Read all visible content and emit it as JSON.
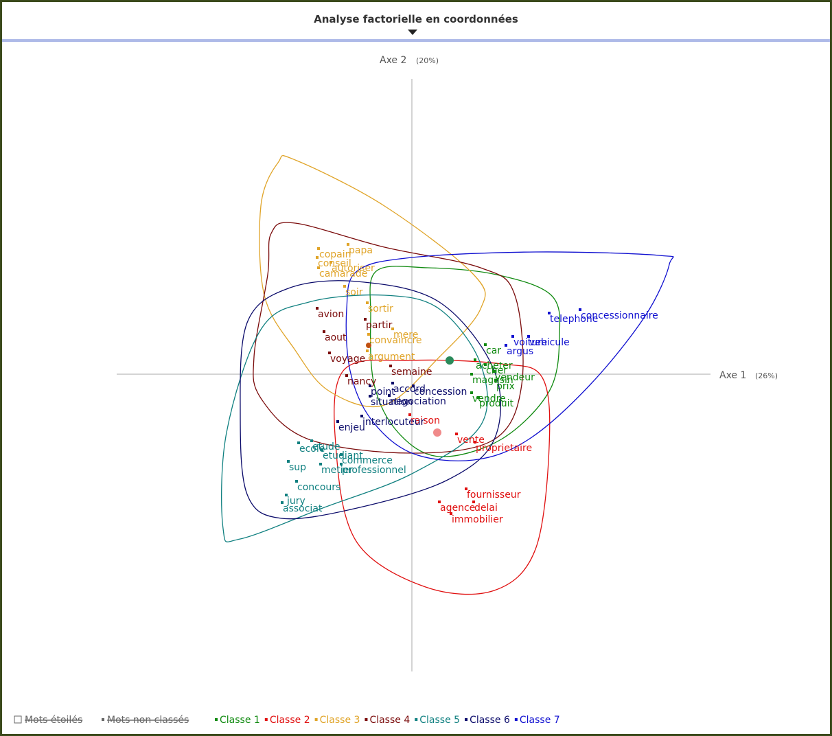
{
  "header": {
    "title": "Analyse factorielle en coordonnées"
  },
  "axes": {
    "axis2": {
      "label": "Axe 2",
      "share": "(20%)"
    },
    "axis1": {
      "label": "Axe 1",
      "share": "(26%)"
    }
  },
  "legend": {
    "starred": "Mots étoilés",
    "unclassified": "Mots non classés"
  },
  "classes": [
    {
      "name": "Classe 1",
      "color": "#108a10",
      "words": [
        "car",
        "acheter",
        "cher",
        "magasin",
        "vendeur",
        "prix",
        "vendre",
        "produit"
      ]
    },
    {
      "name": "Classe 2",
      "color": "#e01010",
      "words": [
        "raison",
        "vente",
        "proprietaire",
        "fournisseur",
        "agence",
        "delai",
        "immobilier"
      ]
    },
    {
      "name": "Classe 3",
      "color": "#e0a428",
      "words": [
        "papa",
        "copain",
        "conseil",
        "autoriser",
        "camarade",
        "soir",
        "sortir",
        "mere",
        "convaincre",
        "argument"
      ]
    },
    {
      "name": "Classe 4",
      "color": "#7a0a0a",
      "words": [
        "avion",
        "partir",
        "aout",
        "voyage",
        "semaine",
        "nancy"
      ]
    },
    {
      "name": "Classe 5",
      "color": "#108080",
      "words": [
        "ecole",
        "etude",
        "etudiant",
        "commerce",
        "metier",
        "professionnel",
        "sup",
        "concours",
        "jury",
        "associat"
      ]
    },
    {
      "name": "Classe 6",
      "color": "#0a0a6a",
      "words": [
        "accord",
        "concession",
        "point",
        "situation",
        "negociation",
        "enjeu",
        "interlocuteur"
      ]
    },
    {
      "name": "Classe 7",
      "color": "#1010d0",
      "words": [
        "concessionnaire",
        "telephone",
        "voiture",
        "vehicule",
        "argus"
      ]
    }
  ]
}
